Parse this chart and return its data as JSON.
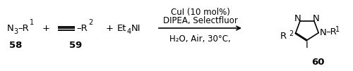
{
  "figsize": [
    5.0,
    1.01
  ],
  "dpi": 100,
  "bg_color": "#ffffff",
  "above_arrow_line1": "CuI (10 mol%)",
  "above_arrow_line2": "DIPEA, Selectfluor",
  "below_arrow_line1": "H₂O, Air, 30°C,",
  "compound58_label": "58",
  "compound59_label": "59",
  "compound60_label": "60",
  "font_size_main": 9.5,
  "font_size_sub": 7.0,
  "font_size_arrow": 8.5
}
